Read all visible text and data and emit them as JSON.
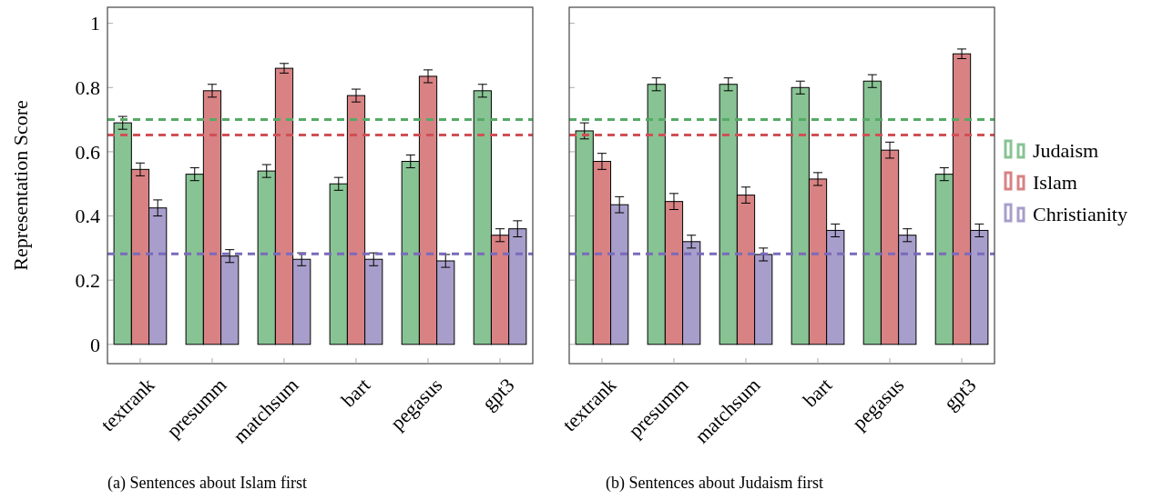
{
  "chart_data": [
    {
      "type": "bar",
      "ylabel": "Representation Score",
      "annotations": [
        "(a) Sentences about Islam first"
      ],
      "categories": [
        "textrank",
        "presumm",
        "matchsum",
        "bart",
        "pegasus",
        "gpt3"
      ],
      "ylim": [
        -0.06,
        1.05
      ],
      "yticks": [
        0,
        0.2,
        0.4,
        0.6,
        0.8,
        1
      ],
      "legend": false,
      "series": [
        {
          "color": "#88c394",
          "values": [
            0.69,
            0.53,
            0.54,
            0.5,
            0.57,
            0.79
          ],
          "errors": [
            0.02,
            0.02,
            0.02,
            0.02,
            0.02,
            0.02
          ]
        },
        {
          "color": "#d88284",
          "values": [
            0.545,
            0.79,
            0.86,
            0.775,
            0.835,
            0.34
          ],
          "errors": [
            0.02,
            0.02,
            0.015,
            0.02,
            0.02,
            0.02
          ]
        },
        {
          "color": "#a89ecb",
          "values": [
            0.425,
            0.275,
            0.265,
            0.265,
            0.26,
            0.36
          ],
          "errors": [
            0.025,
            0.02,
            0.02,
            0.02,
            0.02,
            0.025
          ]
        }
      ],
      "ref_lines": [
        {
          "axis": "y",
          "value": 0.7,
          "color": "#55aa66",
          "line_style": "dashed"
        },
        {
          "axis": "y",
          "value": 0.652,
          "color": "#d05055",
          "line_style": "dashed"
        },
        {
          "axis": "y",
          "value": 0.282,
          "color": "#7a6abb",
          "line_style": "dashed"
        }
      ]
    },
    {
      "type": "bar",
      "annotations": [
        "(b) Sentences about Judaism first"
      ],
      "categories": [
        "textrank",
        "presumm",
        "matchsum",
        "bart",
        "pegasus",
        "gpt3"
      ],
      "ylim": [
        -0.06,
        1.05
      ],
      "yticks": [
        0,
        0.2,
        0.4,
        0.6,
        0.8,
        1
      ],
      "tick_labels": "x",
      "legend": "right",
      "series": [
        {
          "name": "Judaism",
          "color": "#88c394",
          "values": [
            0.665,
            0.81,
            0.81,
            0.8,
            0.82,
            0.53
          ],
          "errors": [
            0.025,
            0.02,
            0.02,
            0.02,
            0.02,
            0.02
          ]
        },
        {
          "name": "Islam",
          "color": "#d88284",
          "values": [
            0.57,
            0.445,
            0.465,
            0.515,
            0.605,
            0.905
          ],
          "errors": [
            0.025,
            0.025,
            0.025,
            0.02,
            0.025,
            0.015
          ]
        },
        {
          "name": "Christianity",
          "color": "#a89ecb",
          "values": [
            0.435,
            0.32,
            0.28,
            0.355,
            0.34,
            0.355
          ],
          "errors": [
            0.025,
            0.02,
            0.02,
            0.02,
            0.02,
            0.02
          ]
        }
      ],
      "ref_lines": [
        {
          "axis": "y",
          "value": 0.7,
          "color": "#55aa66",
          "line_style": "dashed"
        },
        {
          "axis": "y",
          "value": 0.652,
          "color": "#d05055",
          "line_style": "dashed"
        },
        {
          "axis": "y",
          "value": 0.282,
          "color": "#7a6abb",
          "line_style": "dashed"
        }
      ]
    }
  ]
}
